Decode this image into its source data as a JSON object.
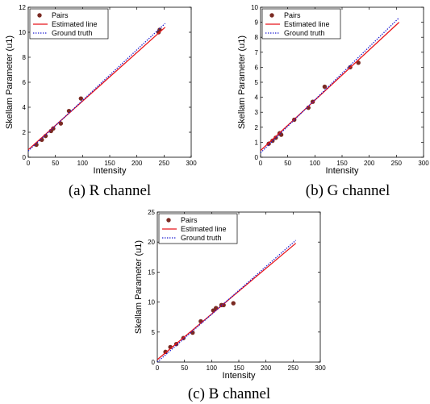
{
  "colors": {
    "pairs": "#7a2a22",
    "estimated": "#e8151b",
    "ground_truth": "#1a1ad0",
    "axis": "#000000"
  },
  "chart_data": [
    {
      "type": "scatter",
      "caption": "(a) R channel",
      "xlabel": "Intensity",
      "ylabel": "Skellam Parameter (u1)",
      "xlim": [
        0,
        300
      ],
      "ylim": [
        0,
        12
      ],
      "xticks": [
        0,
        50,
        100,
        150,
        200,
        250,
        300
      ],
      "yticks": [
        0,
        2,
        4,
        6,
        8,
        10,
        12
      ],
      "legend_position": "top-left",
      "grid": false,
      "series": [
        {
          "name": "Pairs",
          "kind": "points",
          "x": [
            15,
            25,
            32,
            42,
            46,
            60,
            75,
            97,
            240,
            242
          ],
          "y": [
            1.0,
            1.4,
            1.7,
            2.1,
            2.3,
            2.7,
            3.7,
            4.7,
            10.0,
            10.2
          ]
        },
        {
          "name": "Estimated line",
          "kind": "line",
          "x": [
            0,
            252
          ],
          "y": [
            0.6,
            10.4
          ]
        },
        {
          "name": "Ground truth",
          "kind": "dotted-line",
          "x": [
            0,
            252
          ],
          "y": [
            0.5,
            10.7
          ]
        }
      ]
    },
    {
      "type": "scatter",
      "caption": "(b) G channel",
      "xlabel": "Intensity",
      "ylabel": "Skellam Parameter (u1)",
      "xlim": [
        0,
        300
      ],
      "ylim": [
        0,
        10
      ],
      "xticks": [
        0,
        50,
        100,
        150,
        200,
        250,
        300
      ],
      "yticks": [
        0,
        1,
        2,
        3,
        4,
        5,
        6,
        7,
        8,
        9,
        10
      ],
      "legend_position": "top-left",
      "grid": false,
      "series": [
        {
          "name": "Pairs",
          "kind": "points",
          "x": [
            15,
            22,
            28,
            35,
            38,
            62,
            88,
            96,
            118,
            165,
            180
          ],
          "y": [
            0.9,
            1.1,
            1.3,
            1.6,
            1.5,
            2.5,
            3.3,
            3.7,
            4.7,
            6.0,
            6.3
          ]
        },
        {
          "name": "Estimated line",
          "kind": "line",
          "x": [
            0,
            255
          ],
          "y": [
            0.45,
            9.0
          ]
        },
        {
          "name": "Ground truth",
          "kind": "dotted-line",
          "x": [
            0,
            255
          ],
          "y": [
            0.3,
            9.3
          ]
        }
      ]
    },
    {
      "type": "scatter",
      "caption": "(c) B channel",
      "xlabel": "Intensity",
      "ylabel": "Skellam Parameter (u1)",
      "xlim": [
        0,
        300
      ],
      "ylim": [
        0,
        25
      ],
      "xticks": [
        0,
        50,
        100,
        150,
        200,
        250,
        300
      ],
      "yticks": [
        0,
        5,
        10,
        15,
        20,
        25
      ],
      "legend_position": "top-left",
      "grid": false,
      "series": [
        {
          "name": "Pairs",
          "kind": "points",
          "x": [
            15,
            24,
            35,
            48,
            65,
            80,
            103,
            108,
            118,
            122,
            140
          ],
          "y": [
            1.7,
            2.5,
            3.0,
            4.0,
            4.9,
            6.8,
            8.6,
            9.0,
            9.5,
            9.5,
            9.8
          ]
        },
        {
          "name": "Estimated line",
          "kind": "line",
          "x": [
            0,
            255
          ],
          "y": [
            0.4,
            19.8
          ]
        },
        {
          "name": "Ground truth",
          "kind": "dotted-line",
          "x": [
            0,
            255
          ],
          "y": [
            0.0,
            20.3
          ]
        }
      ]
    }
  ]
}
